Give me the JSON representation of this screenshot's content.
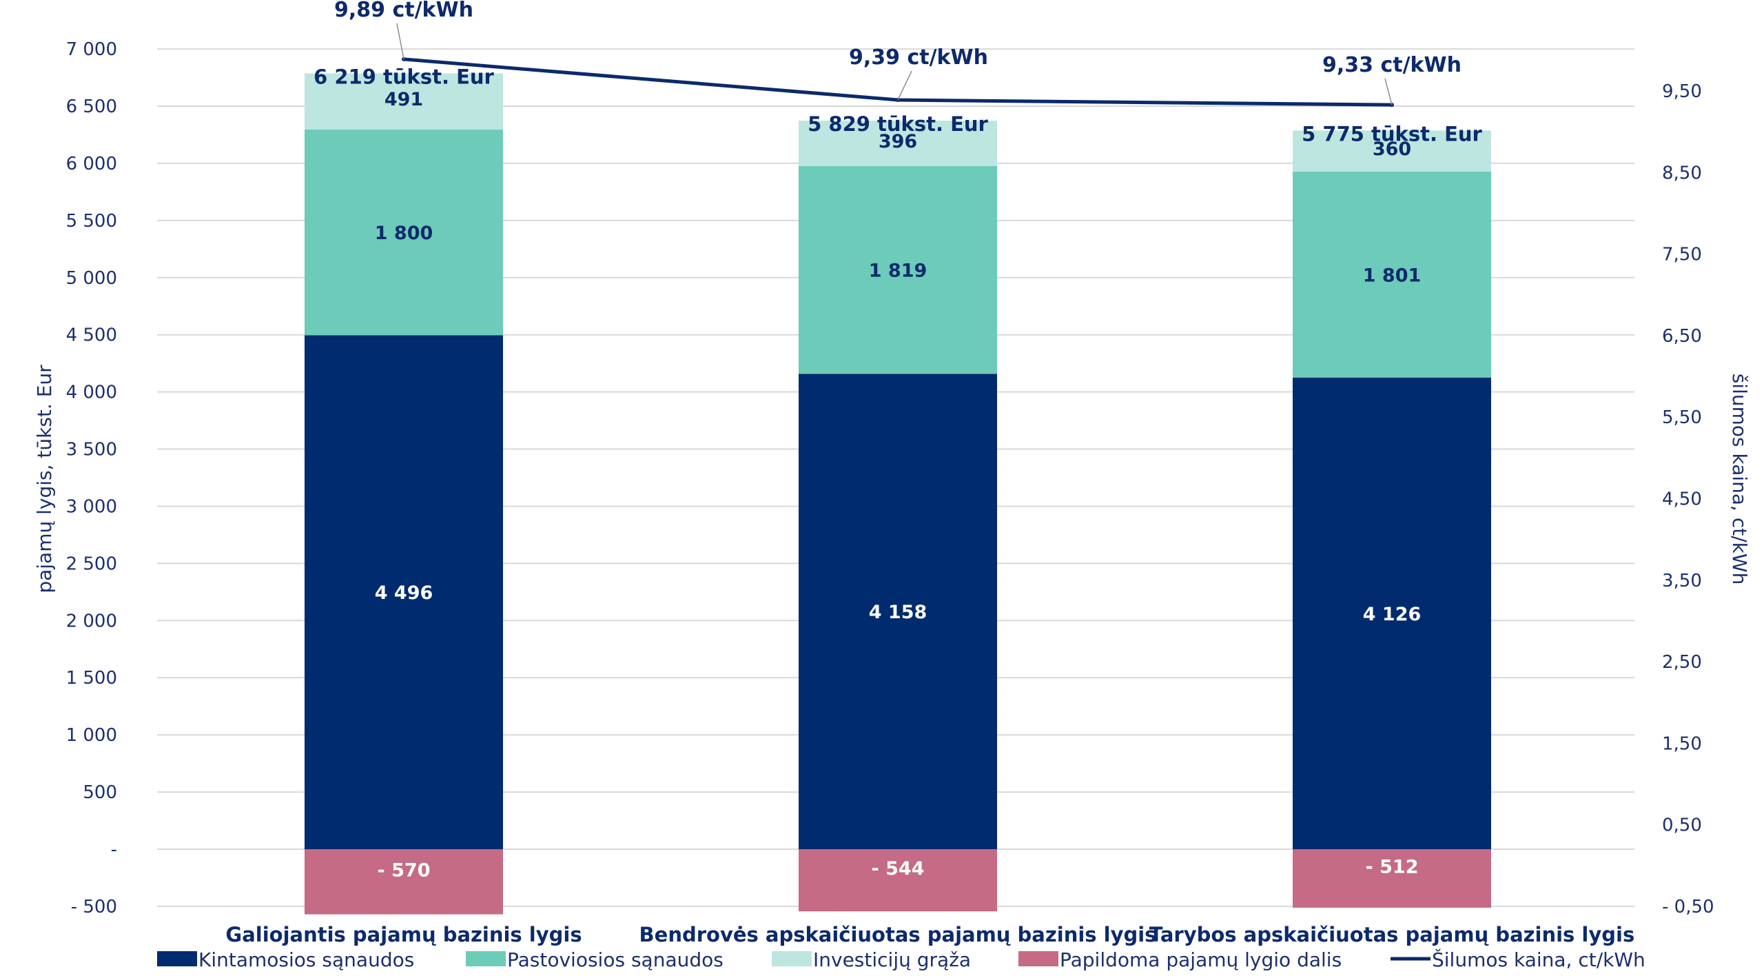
{
  "colors": {
    "kintamosios": "#002b6e",
    "pastoviosios": "#6dcbb9",
    "investiciju": "#bde6e0",
    "papildoma": "#c56b85",
    "line": "#0b2a6b",
    "grid": "#d9d9d9",
    "text": "#1c2f6e"
  },
  "chart_data": {
    "type": "bar",
    "stacked": true,
    "categories": [
      "Galiojantis pajamų bazinis lygis",
      "Bendrovės apskaičiuotas pajamų bazinis lygis",
      "Tarybos apskaičiuotas pajamų bazinis lygis"
    ],
    "series": [
      {
        "key": "kintamosios",
        "name": "Kintamosios sąnaudos",
        "values": [
          4496,
          4158,
          4126
        ],
        "labels": [
          "4 496",
          "4 158",
          "4 126"
        ]
      },
      {
        "key": "pastoviosios",
        "name": "Pastoviosios sąnaudos",
        "values": [
          1800,
          1819,
          1801
        ],
        "labels": [
          "1 800",
          "1 819",
          "1 801"
        ]
      },
      {
        "key": "investiciju",
        "name": "Investicijų grąža",
        "values": [
          491,
          396,
          360
        ],
        "labels": [
          "491",
          "396",
          "360"
        ]
      },
      {
        "key": "papildoma",
        "name": "Papildoma pajamų lygio dalis",
        "values": [
          -570,
          -544,
          -512
        ],
        "labels": [
          "- 570",
          "- 544",
          "- 512"
        ]
      }
    ],
    "totals": [
      "6 219 tūkst. Eur",
      "5 829 tūkst. Eur",
      "5 775 tūkst. Eur"
    ],
    "line_series": {
      "name": "Šilumos kaina, ct/kWh",
      "values": [
        9.89,
        9.39,
        9.33
      ],
      "labels": [
        "9,89 ct/kWh",
        "9,39 ct/kWh",
        "9,33 ct/kWh"
      ]
    },
    "ylabel": "pajamų lygis, tūkst. Eur",
    "y2label": "šilumos kaina, ct/kWh",
    "ylim": [
      -500,
      7000
    ],
    "y_ticks": [
      -500,
      0,
      500,
      1000,
      1500,
      2000,
      2500,
      3000,
      3500,
      4000,
      4500,
      5000,
      5500,
      6000,
      6500,
      7000
    ],
    "y_tick_labels": [
      "- 500",
      "-",
      "500",
      "1 000",
      "1 500",
      "2 000",
      "2 500",
      "3 000",
      "3 500",
      "4 000",
      "4 500",
      "5 000",
      "5 500",
      "6 000",
      "6 500",
      "7 000"
    ],
    "y2lim": [
      -0.5,
      10
    ],
    "y2_ticks": [
      -0.5,
      0.5,
      1.5,
      2.5,
      3.5,
      4.5,
      5.5,
      6.5,
      7.5,
      8.5,
      9.5
    ],
    "y2_tick_labels": [
      "- 0,50",
      "0,50",
      "1,50",
      "2,50",
      "3,50",
      "4,50",
      "5,50",
      "6,50",
      "7,50",
      "8,50",
      "9,50"
    ],
    "grid": true,
    "legend_position": "bottom"
  }
}
